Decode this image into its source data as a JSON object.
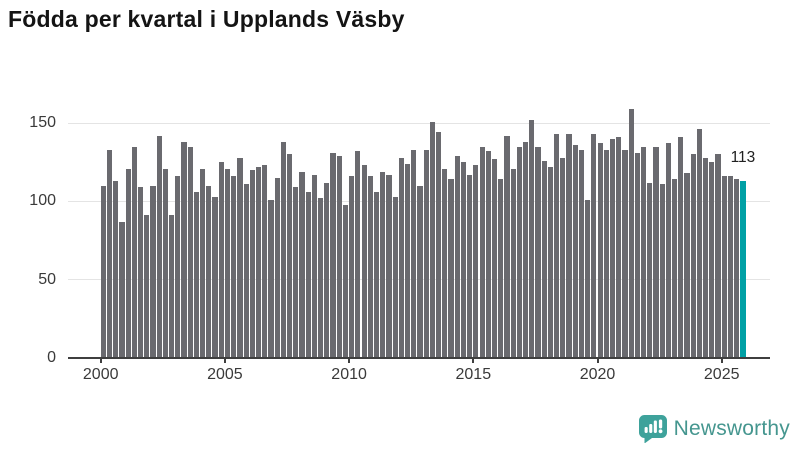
{
  "title": "Födda per kvartal i Upplands Väsby",
  "chart_data": {
    "type": "bar",
    "title": "Födda per kvartal i Upplands Väsby",
    "frequency": "quarterly",
    "x_start": "2000 Q1",
    "x_end": "2025 Q4",
    "start_year": 2000,
    "values": [
      110,
      133,
      113,
      87,
      121,
      135,
      109,
      91,
      110,
      142,
      121,
      91,
      116,
      138,
      135,
      106,
      121,
      110,
      103,
      125,
      121,
      116,
      128,
      111,
      120,
      122,
      123,
      101,
      115,
      138,
      130,
      109,
      119,
      106,
      117,
      102,
      112,
      131,
      129,
      98,
      116,
      132,
      123,
      116,
      106,
      119,
      117,
      103,
      128,
      124,
      133,
      110,
      133,
      151,
      144,
      121,
      114,
      129,
      125,
      117,
      123,
      135,
      132,
      127,
      114,
      142,
      121,
      135,
      138,
      152,
      135,
      126,
      122,
      143,
      128,
      143,
      136,
      133,
      101,
      143,
      137,
      133,
      140,
      141,
      133,
      159,
      131,
      135,
      112,
      135,
      111,
      137,
      114,
      141,
      118,
      130,
      146,
      128,
      125,
      130,
      116,
      116,
      114,
      113
    ],
    "highlight_index": 103,
    "highlight_value": 113,
    "highlight_label": "113",
    "yticks": [
      0,
      50,
      100,
      150
    ],
    "xticks": [
      2000,
      2005,
      2010,
      2015,
      2020,
      2025
    ],
    "ylim": [
      0,
      165
    ],
    "grid": "horizontal",
    "legend": "none",
    "xlabel": "",
    "ylabel": "",
    "bar_color": "#6a6a6f",
    "highlight_color": "#00a0a5"
  },
  "footer": {
    "brand": "Newsworthy"
  }
}
